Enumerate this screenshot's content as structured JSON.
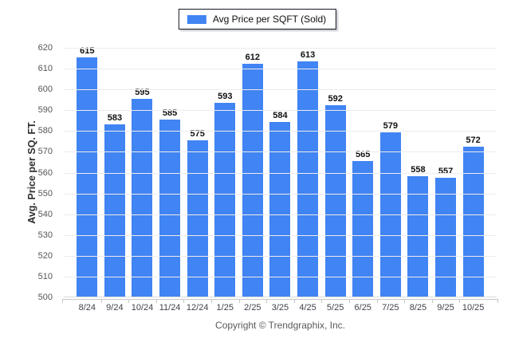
{
  "legend": {
    "label": "Avg Price per SQFT (Sold)",
    "swatch_color": "#4184f3"
  },
  "footer": {
    "text": "Copyright © Trendgraphix, Inc."
  },
  "chart_data": {
    "type": "bar",
    "title": "",
    "xlabel": "",
    "ylabel": "Avg. Price per SQ. FT.",
    "categories": [
      "8/24",
      "9/24",
      "10/24",
      "11/24",
      "12/24",
      "1/25",
      "2/25",
      "3/25",
      "4/25",
      "5/25",
      "6/25",
      "7/25",
      "8/25",
      "9/25",
      "10/25"
    ],
    "values": [
      615,
      583,
      595,
      585,
      575,
      593,
      612,
      584,
      613,
      592,
      565,
      579,
      558,
      557,
      572
    ],
    "series_name": "Avg Price per SQFT (Sold)",
    "ylim": [
      500,
      620
    ],
    "ytick_step": 10,
    "grid": true,
    "legend_position": "top center",
    "bar_color": "#4184f3",
    "gridline_color": "#ececec",
    "axis_color": "#c6c6c6"
  }
}
